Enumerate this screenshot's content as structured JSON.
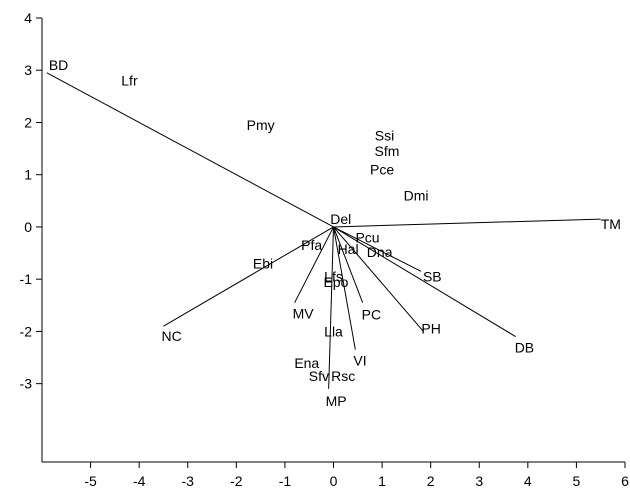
{
  "chart_data": {
    "type": "scatter",
    "subtype": "biplot",
    "title": "",
    "xlabel": "",
    "ylabel": "",
    "xlim": [
      -6,
      6
    ],
    "ylim": [
      -4.5,
      4
    ],
    "xticks": [
      -5,
      -4,
      -3,
      -2,
      -1,
      0,
      1,
      2,
      3,
      4,
      5,
      6
    ],
    "yticks": [
      -3,
      -2,
      -1,
      0,
      1,
      2,
      3,
      4
    ],
    "grid": false,
    "colors": {
      "ink": "#000000",
      "background": "#ffffff"
    },
    "vectors": [
      {
        "label": "BD",
        "x": -5.9,
        "y": 2.95
      },
      {
        "label": "TM",
        "x": 5.5,
        "y": 0.15
      },
      {
        "label": "NC",
        "x": -3.5,
        "y": -1.9
      },
      {
        "label": "MV",
        "x": -0.8,
        "y": -1.45
      },
      {
        "label": "MP",
        "x": -0.1,
        "y": -3.1
      },
      {
        "label": "VI",
        "x": 0.45,
        "y": -2.35
      },
      {
        "label": "PC",
        "x": 0.6,
        "y": -1.45
      },
      {
        "label": "PH",
        "x": 1.85,
        "y": -2.0
      },
      {
        "label": "SB",
        "x": 1.8,
        "y": -0.85
      },
      {
        "label": "DB",
        "x": 3.75,
        "y": -2.1
      }
    ],
    "species": [
      {
        "label": "Lfr",
        "x": -4.2,
        "y": 2.8
      },
      {
        "label": "Pmy",
        "x": -1.5,
        "y": 1.95
      },
      {
        "label": "Ssi",
        "x": 1.05,
        "y": 1.75
      },
      {
        "label": "Sfm",
        "x": 1.1,
        "y": 1.45
      },
      {
        "label": "Pce",
        "x": 1.0,
        "y": 1.1
      },
      {
        "label": "Dmi",
        "x": 1.7,
        "y": 0.6
      },
      {
        "label": "Del",
        "x": 0.15,
        "y": 0.15
      },
      {
        "label": "Pcu",
        "x": 0.7,
        "y": -0.2
      },
      {
        "label": "Pfa",
        "x": -0.45,
        "y": -0.35
      },
      {
        "label": "Hal",
        "x": 0.3,
        "y": -0.42
      },
      {
        "label": "Dna",
        "x": 0.95,
        "y": -0.48
      },
      {
        "label": "Ebi",
        "x": -1.45,
        "y": -0.7
      },
      {
        "label": "Lfs",
        "x": 0.0,
        "y": -0.95
      },
      {
        "label": "Epo",
        "x": 0.05,
        "y": -1.05
      },
      {
        "label": "Lla",
        "x": 0.0,
        "y": -2.0
      },
      {
        "label": "Ena",
        "x": -0.55,
        "y": -2.6
      },
      {
        "label": "Sfv",
        "x": -0.3,
        "y": -2.85
      },
      {
        "label": "Rsc",
        "x": 0.2,
        "y": -2.85
      }
    ]
  }
}
